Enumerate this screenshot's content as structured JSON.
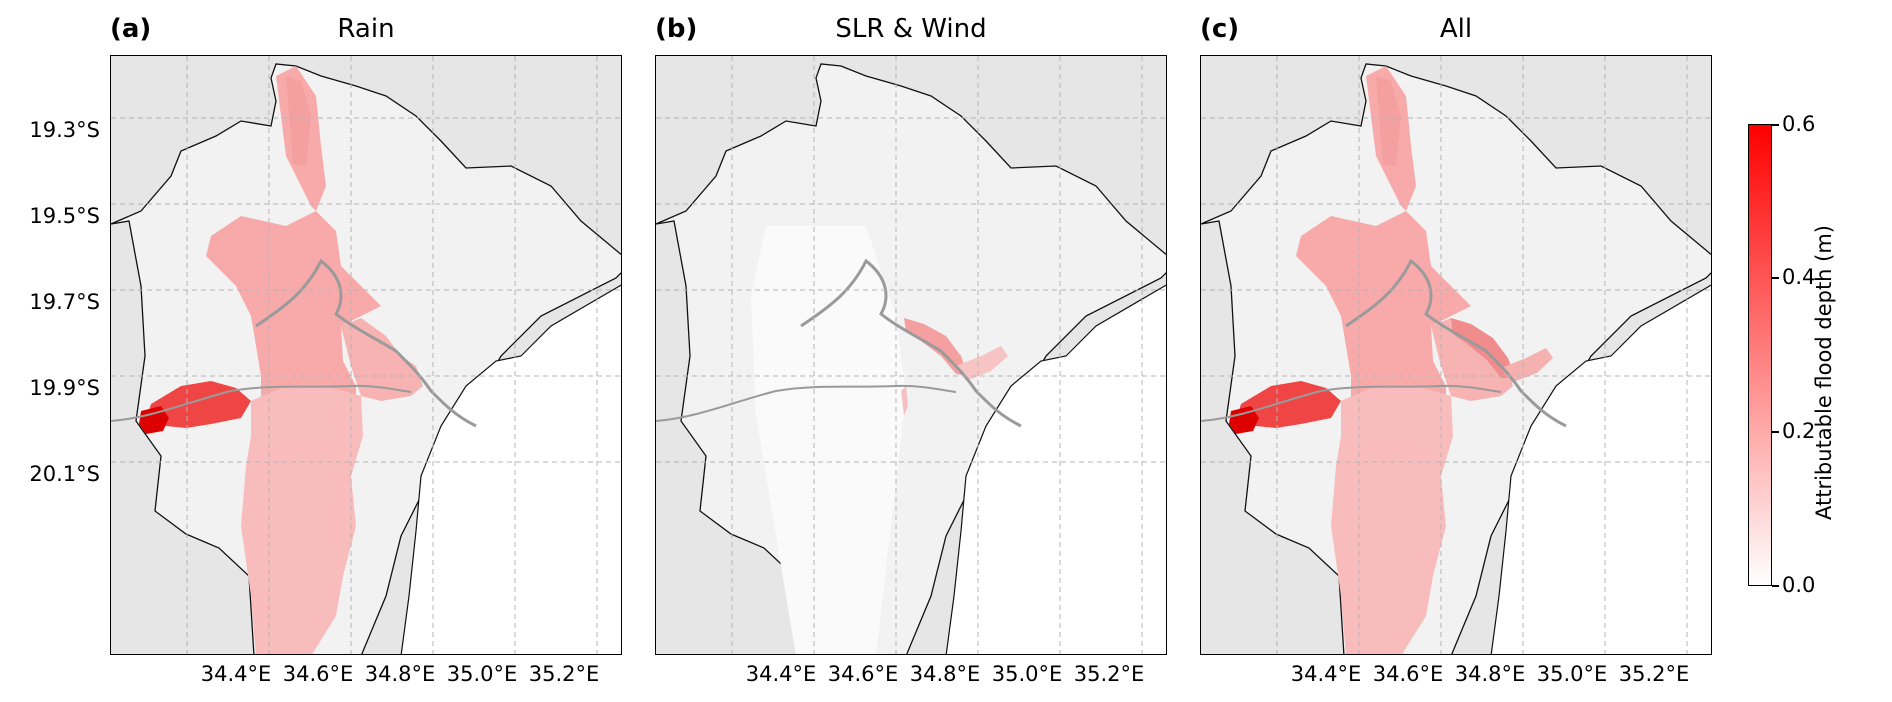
{
  "panels": [
    {
      "label": "(a)",
      "title": "Rain"
    },
    {
      "label": "(b)",
      "title": "SLR & Wind"
    },
    {
      "label": "(c)",
      "title": "All"
    }
  ],
  "axes": {
    "lat_ticks": [
      "19.3°S",
      "19.5°S",
      "19.7°S",
      "19.9°S",
      "20.1°S"
    ],
    "lon_ticks": [
      "34.4°E",
      "34.6°E",
      "34.8°E",
      "35.0°E",
      "35.2°E"
    ]
  },
  "colorbar": {
    "label": "Attributable flood depth (m)",
    "ticks": [
      "0.0",
      "0.2",
      "0.4",
      "0.6"
    ],
    "min": 0.0,
    "max": 0.6,
    "color_low": "#ffffff",
    "color_high": "#ff0000"
  },
  "colors": {
    "land": "#f2f2f2",
    "ocean": "#ffffff",
    "outside": "#e6e6e6",
    "grid": "#b4b4b4"
  }
}
